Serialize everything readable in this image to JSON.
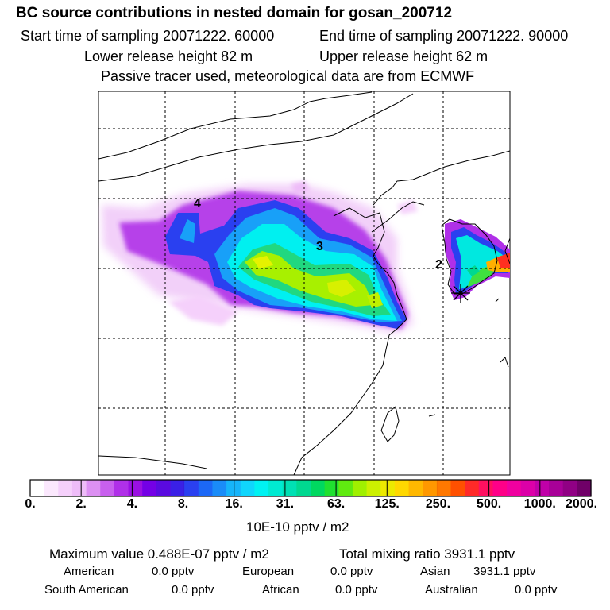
{
  "header": {
    "title": "BC  source contributions in nested domain for gosan_200712",
    "start_time": "Start time of sampling 20071222. 60000",
    "end_time": "End time of sampling 20071222. 90000",
    "lower_height": "Lower release height   82 m",
    "upper_height": "Upper release height   62 m",
    "tracer_note": "Passive tracer used, meteorological data are from ECMWF"
  },
  "map": {
    "point_labels": [
      {
        "text": "4"
      },
      {
        "text": "3"
      },
      {
        "text": "2"
      }
    ],
    "receptor_icon": "star-marker-icon"
  },
  "colorbar": {
    "units": "10E-10 pptv / m2",
    "tick_labels": [
      "0.",
      "2.",
      "4.",
      "8.",
      "16.",
      "31.",
      "63.",
      "125.",
      "250.",
      "500.",
      "1000.",
      "2000."
    ],
    "colors": [
      "#ffffff",
      "#fbe8fd",
      "#f5d0fb",
      "#eebcf8",
      "#dc90f2",
      "#c860ee",
      "#b030e8",
      "#9a10e2",
      "#7400e6",
      "#5a0ae0",
      "#3a20e6",
      "#2a40f0",
      "#1c68f6",
      "#1a8cf8",
      "#16b4fa",
      "#10d6fc",
      "#00f2f2",
      "#00ead2",
      "#00e0b4",
      "#00d890",
      "#00d860",
      "#20e030",
      "#60ea10",
      "#a0f000",
      "#ccf000",
      "#ecea00",
      "#ffd800",
      "#ffb800",
      "#ff9800",
      "#ff7800",
      "#ff5000",
      "#ff2a28",
      "#ff1060",
      "#ff0088",
      "#f000a0",
      "#dc00a8",
      "#c000a8",
      "#a80098",
      "#900084",
      "#700068"
    ]
  },
  "summary": {
    "maximum": "Maximum value  0.488E-07 pptv / m2",
    "total": "Total mixing ratio     3931.1 pptv",
    "american_label": "American",
    "american_value": "0.0 pptv",
    "european_label": "European",
    "european_value": "0.0 pptv",
    "asian_label": "Asian",
    "asian_value": "3931.1 pptv",
    "south_american_label": "South American",
    "south_american_value": "0.0 pptv",
    "african_label": "African",
    "african_value": "0.0 pptv",
    "australian_label": "Australian",
    "australian_value": "0.0 pptv"
  }
}
